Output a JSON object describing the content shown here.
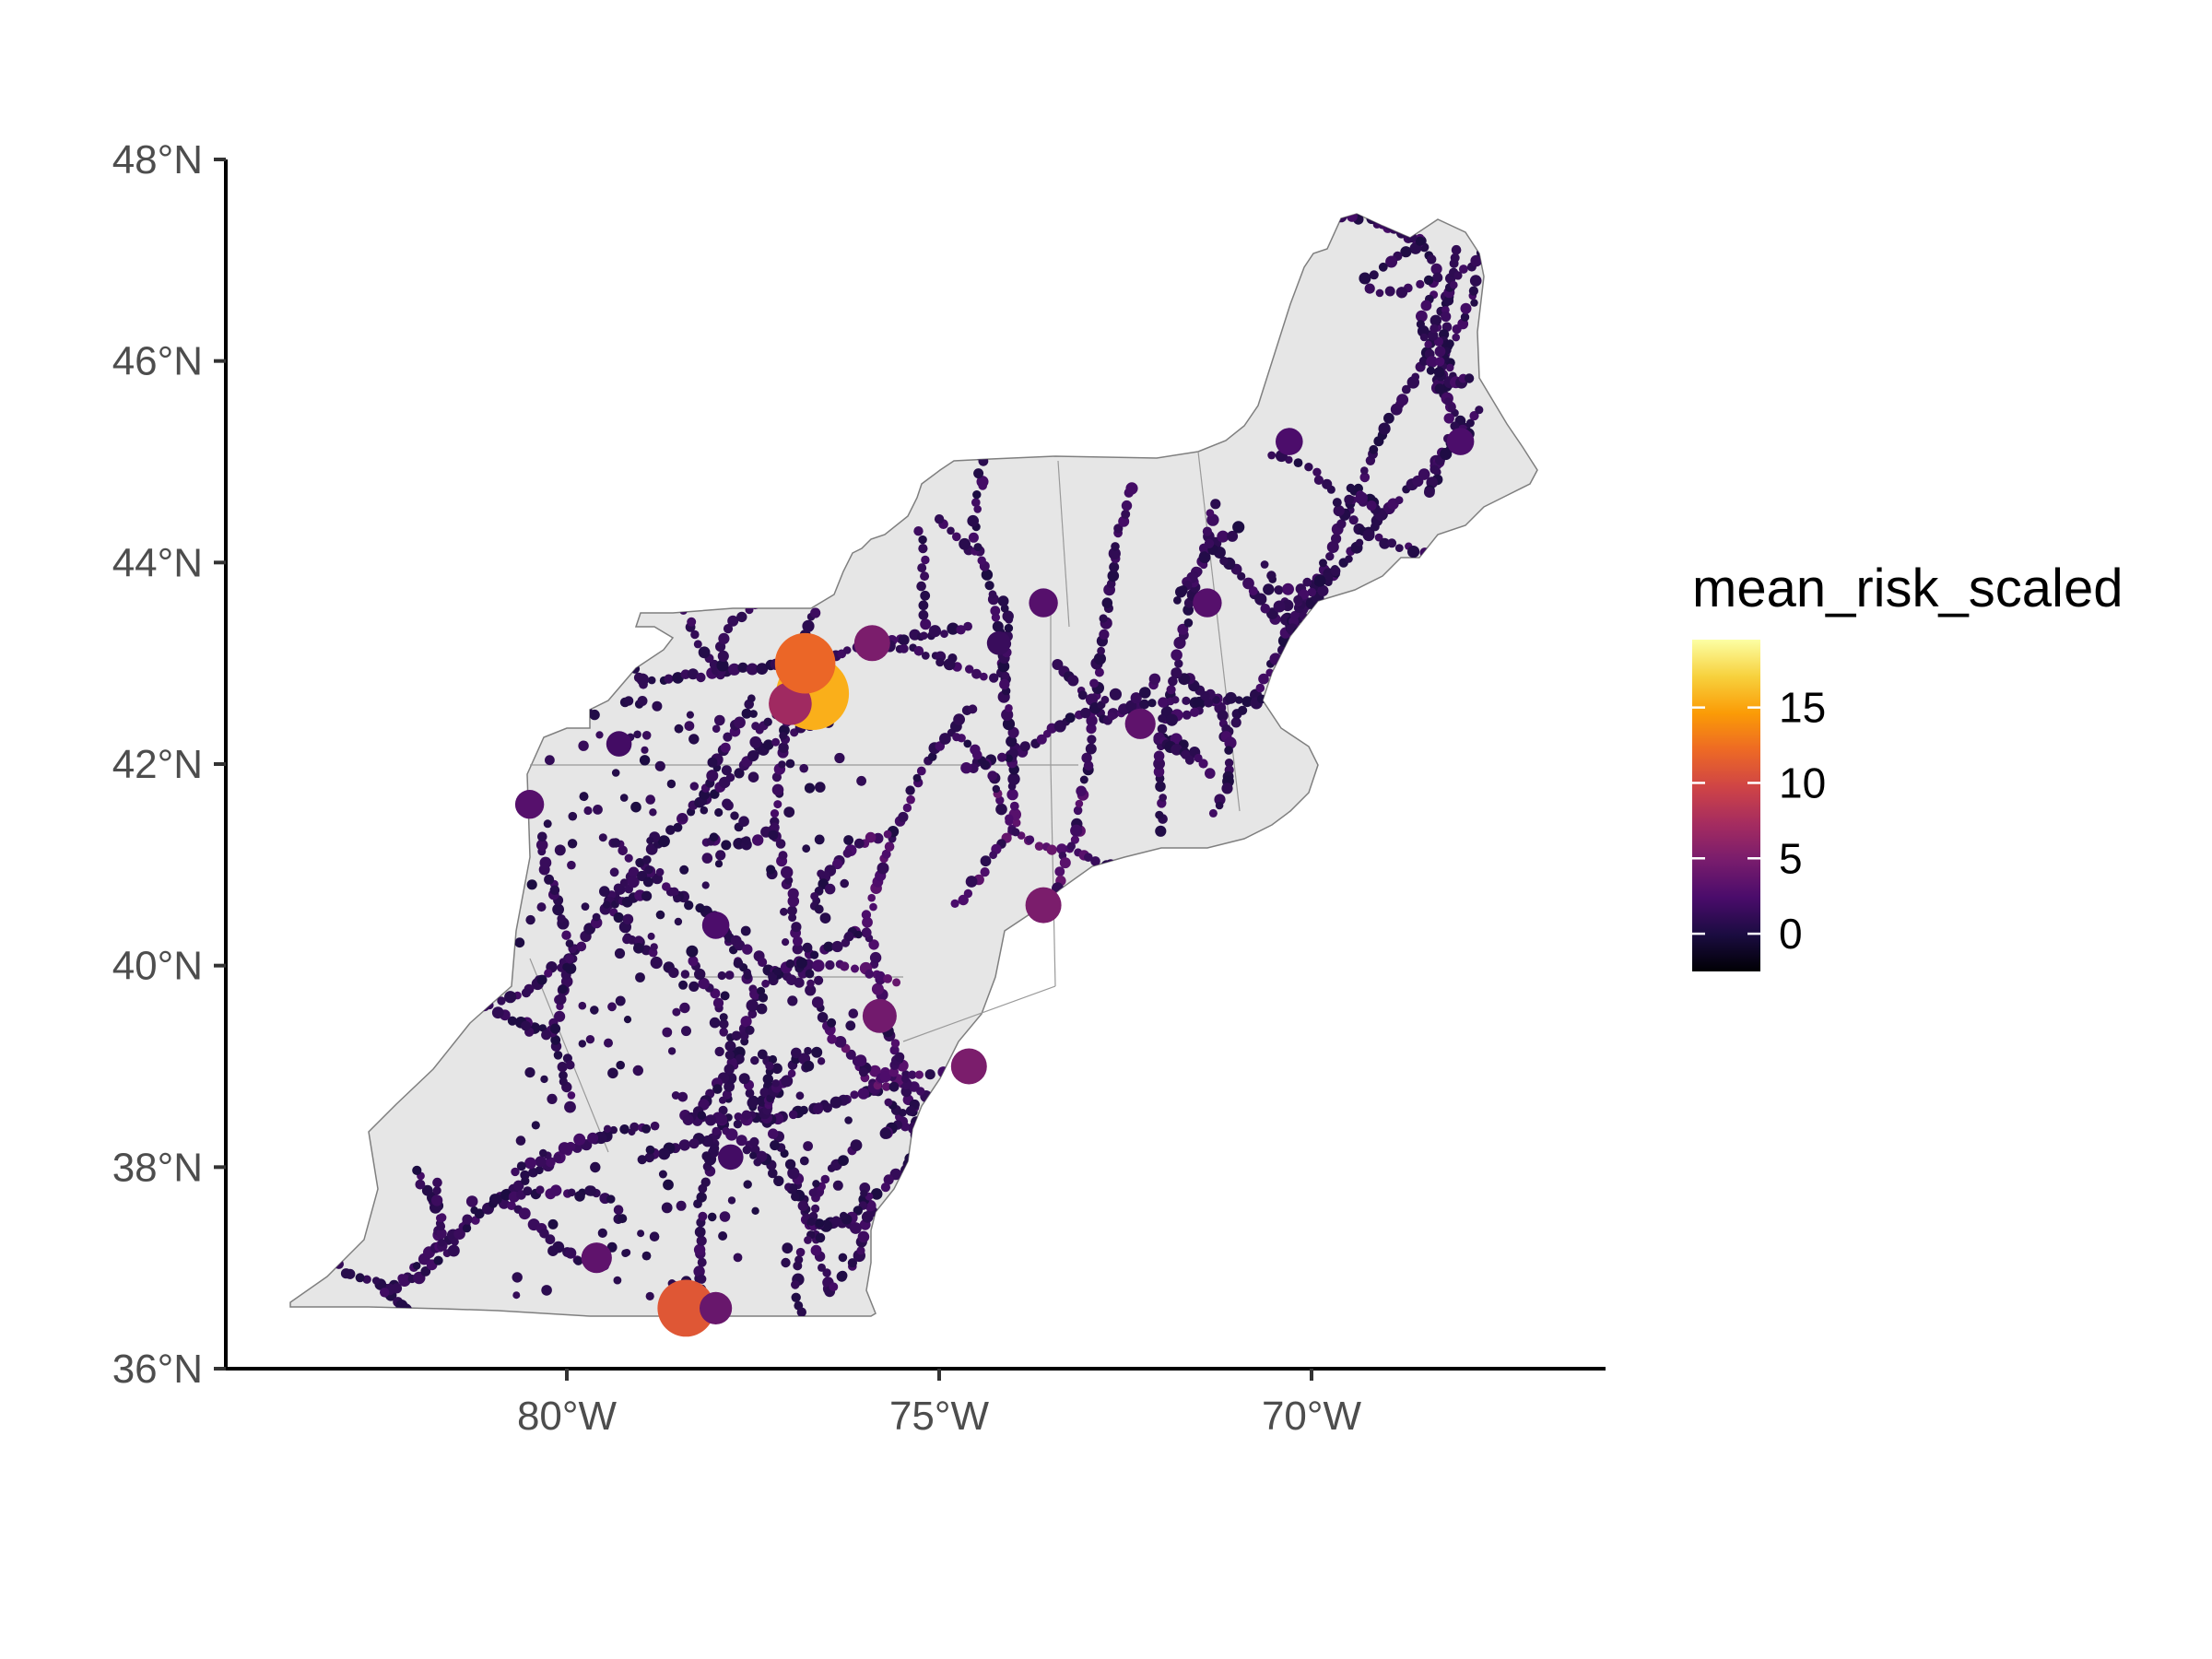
{
  "map": {
    "axes": {
      "y_ticks": [
        {
          "value": 48,
          "label": "48°N"
        },
        {
          "value": 46,
          "label": "46°N"
        },
        {
          "value": 44,
          "label": "44°N"
        },
        {
          "value": 42,
          "label": "42°N"
        },
        {
          "value": 40,
          "label": "40°N"
        },
        {
          "value": 38,
          "label": "38°N"
        },
        {
          "value": 36,
          "label": "36°N"
        }
      ],
      "x_ticks": [
        {
          "value": -80,
          "label": "80°W"
        },
        {
          "value": -75,
          "label": "75°W"
        },
        {
          "value": -70,
          "label": "70°W"
        }
      ]
    },
    "region_fill": "#e6e6e6",
    "region_stroke": "#7f7f7f",
    "legend": {
      "title": "mean_risk_scaled",
      "labels": [
        {
          "value": 15,
          "label": "15"
        },
        {
          "value": 10,
          "label": "10"
        },
        {
          "value": 5,
          "label": "5"
        },
        {
          "value": 0,
          "label": "0"
        }
      ],
      "range": [
        -2.5,
        19.5
      ],
      "palette": "inferno",
      "colors": [
        "#000004",
        "#1b0c41",
        "#4a0c6b",
        "#781c6d",
        "#a52c60",
        "#cf4446",
        "#ed6925",
        "#fb9b06",
        "#f7d13d",
        "#fcffa4"
      ]
    },
    "notable_points": [
      {
        "lon": -76.7,
        "lat": 42.7,
        "value": 15.5
      },
      {
        "lon": -77.0,
        "lat": 42.6,
        "value": 7.0
      },
      {
        "lon": -76.8,
        "lat": 43.0,
        "value": 12.0
      },
      {
        "lon": -75.9,
        "lat": 43.2,
        "value": 5.0
      },
      {
        "lon": -73.6,
        "lat": 43.6,
        "value": 3.0
      },
      {
        "lon": -71.4,
        "lat": 43.6,
        "value": 3.0
      },
      {
        "lon": -72.3,
        "lat": 42.4,
        "value": 3.5
      },
      {
        "lon": -70.3,
        "lat": 45.2,
        "value": 2.5
      },
      {
        "lon": -68.0,
        "lat": 45.2,
        "value": 2.5
      },
      {
        "lon": -80.5,
        "lat": 41.6,
        "value": 3.0
      },
      {
        "lon": -79.3,
        "lat": 42.2,
        "value": 2.0
      },
      {
        "lon": -78.0,
        "lat": 40.4,
        "value": 2.5
      },
      {
        "lon": -77.8,
        "lat": 38.1,
        "value": 2.0
      },
      {
        "lon": -79.6,
        "lat": 37.1,
        "value": 3.5
      },
      {
        "lon": -78.4,
        "lat": 36.6,
        "value": 11.0
      },
      {
        "lon": -78.0,
        "lat": 36.6,
        "value": 4.0
      },
      {
        "lon": -74.2,
        "lat": 43.2,
        "value": 1.5
      },
      {
        "lon": -75.8,
        "lat": 39.5,
        "value": 4.5
      },
      {
        "lon": -74.6,
        "lat": 39.0,
        "value": 5.0
      },
      {
        "lon": -73.6,
        "lat": 40.6,
        "value": 5.0
      }
    ]
  }
}
